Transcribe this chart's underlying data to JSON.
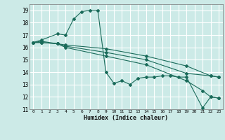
{
  "title": "",
  "xlabel": "Humidex (Indice chaleur)",
  "xlim": [
    -0.5,
    23.5
  ],
  "ylim": [
    11,
    19.5
  ],
  "bg_color": "#cceae7",
  "grid_color": "#ffffff",
  "line_color": "#1a6b5a",
  "lines": [
    {
      "x": [
        0,
        1,
        3,
        4,
        5,
        6,
        7,
        8,
        9,
        10,
        11,
        12,
        13,
        14,
        15,
        16,
        17,
        18,
        19,
        21,
        22,
        23
      ],
      "y": [
        16.4,
        16.6,
        17.1,
        17.0,
        18.3,
        18.9,
        19.0,
        19.0,
        14.0,
        13.1,
        13.3,
        13.0,
        13.5,
        13.6,
        13.6,
        13.7,
        13.7,
        13.6,
        13.6,
        11.1,
        12.0,
        11.9
      ]
    },
    {
      "x": [
        0,
        1,
        3,
        4,
        9,
        14,
        19,
        21,
        22,
        23
      ],
      "y": [
        16.4,
        16.5,
        16.3,
        16.0,
        15.3,
        14.6,
        13.3,
        12.5,
        12.0,
        11.9
      ]
    },
    {
      "x": [
        0,
        1,
        3,
        4,
        9,
        14,
        19,
        22,
        23
      ],
      "y": [
        16.4,
        16.4,
        16.3,
        16.1,
        15.6,
        15.0,
        13.9,
        13.7,
        13.6
      ]
    },
    {
      "x": [
        0,
        1,
        3,
        4,
        9,
        14,
        19,
        22,
        23
      ],
      "y": [
        16.4,
        16.4,
        16.3,
        16.2,
        15.9,
        15.3,
        14.5,
        13.7,
        13.6
      ]
    }
  ],
  "xticks": [
    0,
    1,
    2,
    3,
    4,
    5,
    6,
    7,
    8,
    9,
    10,
    11,
    12,
    13,
    14,
    15,
    16,
    17,
    18,
    19,
    20,
    21,
    22,
    23
  ],
  "yticks": [
    11,
    12,
    13,
    14,
    15,
    16,
    17,
    18,
    19
  ]
}
